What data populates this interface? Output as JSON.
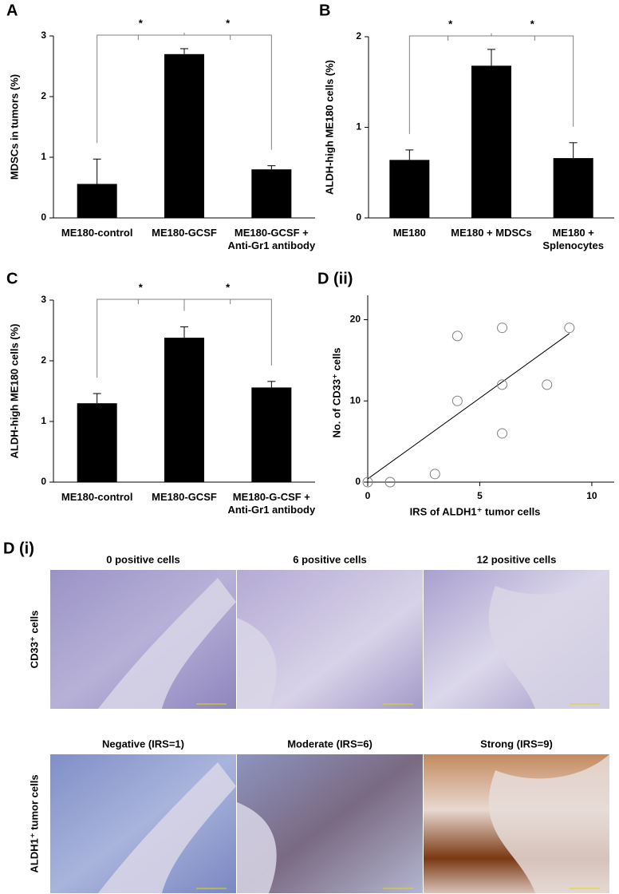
{
  "chart_data": [
    {
      "type": "bar",
      "panel_label": "A",
      "ylabel": "MDSCs in tumors (%)",
      "categories": [
        [
          "ME180-control"
        ],
        [
          "ME180-GCSF"
        ],
        [
          "ME180-GCSF +",
          "Anti-Gr1 antibody"
        ]
      ],
      "values": [
        0.56,
        2.7,
        0.8
      ],
      "errors": [
        0.41,
        0.09,
        0.06
      ],
      "color": "#000000",
      "ylim": [
        0,
        3
      ],
      "yticks": [
        0,
        1,
        2,
        3
      ],
      "significance": [
        "*",
        "*"
      ]
    },
    {
      "type": "bar",
      "panel_label": "B",
      "ylabel": "ALDH-high ME180 cells (%)",
      "categories": [
        [
          "ME180"
        ],
        [
          "ME180 + MDSCs"
        ],
        [
          "ME180 +",
          "Splenocytes"
        ]
      ],
      "values": [
        0.64,
        1.68,
        0.66
      ],
      "errors": [
        0.11,
        0.18,
        0.17
      ],
      "color": "#000000",
      "ylim": [
        0,
        2
      ],
      "yticks": [
        0,
        1,
        2
      ],
      "significance": [
        "*",
        "*"
      ]
    },
    {
      "type": "bar",
      "panel_label": "C",
      "ylabel": "ALDH-high ME180 cells (%)",
      "categories": [
        [
          "ME180-control"
        ],
        [
          "ME180-GCSF"
        ],
        [
          "ME180-G-CSF +",
          "Anti-Gr1 antibody"
        ]
      ],
      "values": [
        1.3,
        2.38,
        1.56
      ],
      "errors": [
        0.16,
        0.18,
        0.1
      ],
      "color": "#000000",
      "ylim": [
        0,
        3
      ],
      "yticks": [
        0,
        1,
        2,
        3
      ],
      "significance": [
        "*",
        "*"
      ]
    },
    {
      "type": "scatter",
      "panel_label": "D (ii)",
      "xlabel": "IRS of ALDH1⁺ tumor cells",
      "ylabel": "No. of CD33⁺ cells",
      "x": [
        0,
        1,
        3,
        4,
        4,
        6,
        6,
        6,
        8,
        9
      ],
      "y": [
        0,
        0,
        1,
        18,
        10,
        19,
        12,
        6,
        12,
        19
      ],
      "color": "#808080",
      "trendline": {
        "x": [
          0,
          9
        ],
        "y": [
          0.4,
          18.3
        ]
      },
      "xlim": [
        0,
        11
      ],
      "xticks": [
        0,
        5,
        10
      ],
      "ylim": [
        0,
        23
      ],
      "yticks": [
        0,
        10,
        20
      ]
    }
  ],
  "micrographs": {
    "panel_label": "D (i)",
    "rows": [
      {
        "label": "CD33⁺ cells",
        "titles": [
          "0 positive cells",
          "6 positive cells",
          "12 positive cells"
        ]
      },
      {
        "label": "ALDH1⁺ tumor cells",
        "titles": [
          "Negative (IRS=1)",
          "Moderate (IRS=6)",
          "Strong (IRS=9)"
        ]
      }
    ]
  }
}
